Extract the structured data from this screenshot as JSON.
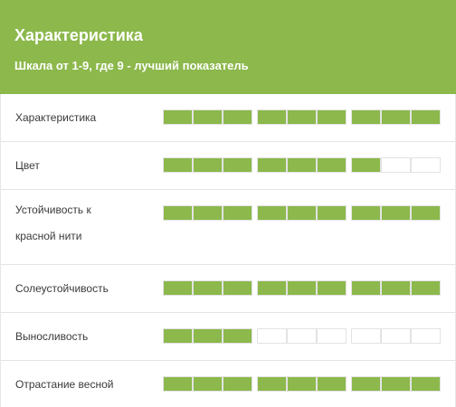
{
  "header": {
    "title": "Характеристика",
    "subtitle": "Шкала от 1-9, где 9 - лучший показатель"
  },
  "colors": {
    "accent": "#8cb84c",
    "empty": "#ffffff",
    "text": "#3a3a3a"
  },
  "rows": [
    {
      "label": "Характеристика",
      "value": 9
    },
    {
      "label": "Цвет",
      "value": 7
    },
    {
      "label_lines": [
        "Устойчивость к",
        "красной нити"
      ],
      "value": 9
    },
    {
      "label": "Солеустойчивость",
      "value": 9
    },
    {
      "label": "Выносливость",
      "value": 3
    },
    {
      "label": "Отрастание весной",
      "value": 9
    }
  ]
}
